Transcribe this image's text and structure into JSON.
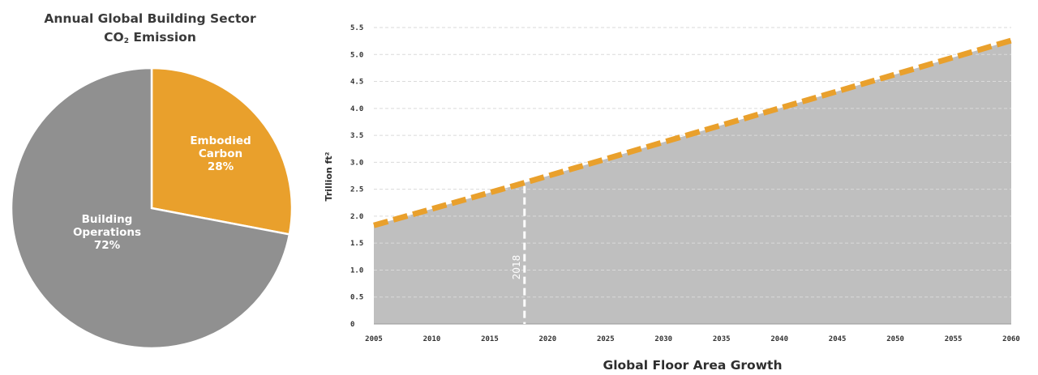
{
  "chart_data": [
    {
      "type": "pie",
      "title_line1": "Annual Global Building Sector",
      "title_line2_prefix": "CO",
      "title_line2_sub": "2",
      "title_line2_suffix": " Emission",
      "slices": [
        {
          "label_lines": [
            "Embodied",
            "Carbon",
            "28%"
          ],
          "value": 28,
          "color": "#e9a02c"
        },
        {
          "label_lines": [
            "Building",
            "Operations",
            "72%"
          ],
          "value": 72,
          "color": "#909090"
        }
      ]
    },
    {
      "type": "area",
      "xlabel": "Global Floor Area Growth",
      "ylabel": "Trillion ft²",
      "xlim": [
        2005,
        2060
      ],
      "ylim": [
        0,
        5.5
      ],
      "x_ticks": [
        "2005",
        "2010",
        "2015",
        "2020",
        "2025",
        "2030",
        "2035",
        "2040",
        "2045",
        "2050",
        "2055",
        "2060"
      ],
      "y_ticks": [
        "0",
        "0.5",
        "1.0",
        "1.5",
        "2.0",
        "2.5",
        "3.0",
        "3.5",
        "4.0",
        "4.5",
        "5.0",
        "5.5"
      ],
      "grid": true,
      "series": [
        {
          "x": [
            2005,
            2018,
            2060
          ],
          "y": [
            1.83,
            2.62,
            5.26
          ],
          "line_color": "#e9a02c",
          "fill_color": "#bfbfbf",
          "line_style": "dashed"
        }
      ],
      "annotation": {
        "x": 2018,
        "label": "2018",
        "line_color": "#ffffff",
        "line_style": "dashed"
      }
    }
  ]
}
